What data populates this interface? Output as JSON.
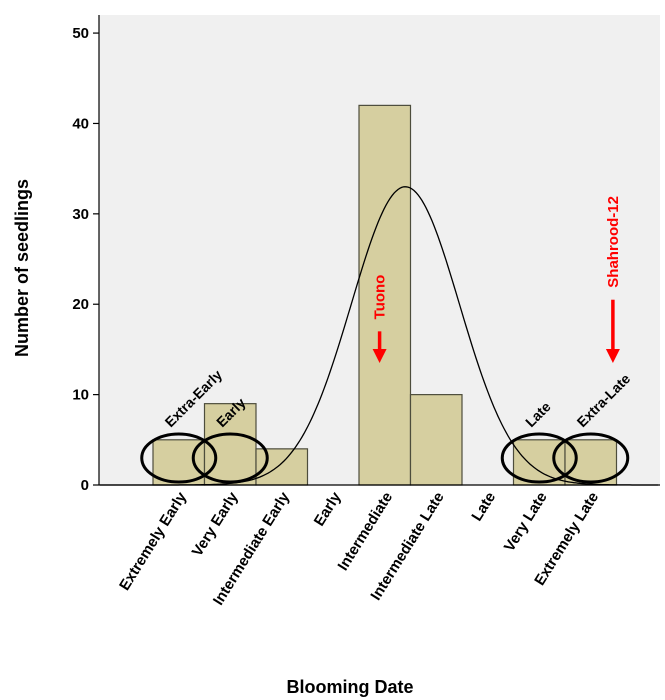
{
  "chart_data": {
    "type": "bar",
    "title": "",
    "xlabel": "Blooming Date",
    "ylabel": "Number of seedlings",
    "ylim": [
      0,
      52
    ],
    "yticks": [
      0,
      10,
      20,
      30,
      40,
      50
    ],
    "categories": [
      "Extremely Early",
      "Very Early",
      "Intermediate Early",
      "Early",
      "Intermediate",
      "Intermediate Late",
      "Late",
      "Very Late",
      "Extremely Late"
    ],
    "bins": [
      {
        "value": 5
      },
      {
        "value": 9
      },
      {
        "value": 4
      },
      {
        "value": 0
      },
      {
        "value": 42
      },
      {
        "value": 10
      },
      {
        "value": 0
      },
      {
        "value": 5
      },
      {
        "value": 5
      }
    ],
    "normal_curve": {
      "peak": 33,
      "center_bin": 4.4,
      "sd_bins": 1.05
    },
    "grid": false,
    "colors": {
      "bar_fill": "#d6cfa0",
      "bar_stroke": "#4d4d3c",
      "plot_bg": "#f0f0f0",
      "arrow": "#ff0000",
      "curve": "#000000"
    },
    "annotations": {
      "circles": [
        {
          "label": "Extra-Early",
          "bin_center": 0.5
        },
        {
          "label": "Early",
          "bin_center": 1.5
        },
        {
          "label": "Late",
          "bin_center": 7.5
        },
        {
          "label": "Extra-Late",
          "bin_center": 8.5
        }
      ],
      "arrows": [
        {
          "label": "Tuono",
          "bin": 4.4,
          "y_top": 17,
          "y_bottom": 13.5
        },
        {
          "label": "Shahrood-12",
          "bin": 8.93,
          "y_top": 20.5,
          "y_bottom": 13.5
        }
      ]
    }
  }
}
